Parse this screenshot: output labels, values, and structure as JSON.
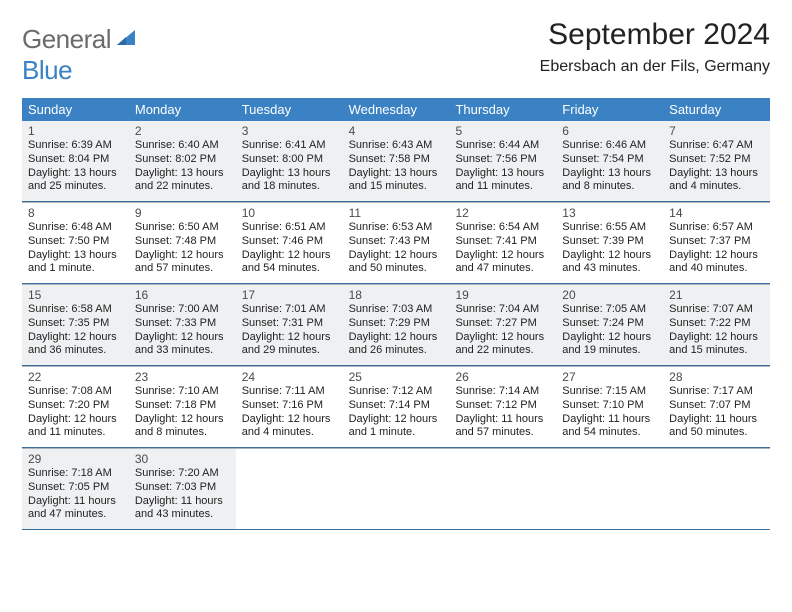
{
  "logo": {
    "text1": "General",
    "text2": "Blue"
  },
  "title": "September 2024",
  "location": "Ebersbach an der Fils, Germany",
  "colors": {
    "header_bg": "#3b82c4",
    "header_text": "#ffffff",
    "alt_row_bg": "#eef0f2",
    "rule_top": "#aab4bd",
    "rule_bottom": "#3b6e9c",
    "logo_gray": "#6b6b6b",
    "logo_blue": "#3b82c4"
  },
  "weekdays": [
    "Sunday",
    "Monday",
    "Tuesday",
    "Wednesday",
    "Thursday",
    "Friday",
    "Saturday"
  ],
  "weeks": [
    {
      "alt": true,
      "days": [
        {
          "n": "1",
          "sr": "Sunrise: 6:39 AM",
          "ss": "Sunset: 8:04 PM",
          "d1": "Daylight: 13 hours",
          "d2": "and 25 minutes."
        },
        {
          "n": "2",
          "sr": "Sunrise: 6:40 AM",
          "ss": "Sunset: 8:02 PM",
          "d1": "Daylight: 13 hours",
          "d2": "and 22 minutes."
        },
        {
          "n": "3",
          "sr": "Sunrise: 6:41 AM",
          "ss": "Sunset: 8:00 PM",
          "d1": "Daylight: 13 hours",
          "d2": "and 18 minutes."
        },
        {
          "n": "4",
          "sr": "Sunrise: 6:43 AM",
          "ss": "Sunset: 7:58 PM",
          "d1": "Daylight: 13 hours",
          "d2": "and 15 minutes."
        },
        {
          "n": "5",
          "sr": "Sunrise: 6:44 AM",
          "ss": "Sunset: 7:56 PM",
          "d1": "Daylight: 13 hours",
          "d2": "and 11 minutes."
        },
        {
          "n": "6",
          "sr": "Sunrise: 6:46 AM",
          "ss": "Sunset: 7:54 PM",
          "d1": "Daylight: 13 hours",
          "d2": "and 8 minutes."
        },
        {
          "n": "7",
          "sr": "Sunrise: 6:47 AM",
          "ss": "Sunset: 7:52 PM",
          "d1": "Daylight: 13 hours",
          "d2": "and 4 minutes."
        }
      ]
    },
    {
      "alt": false,
      "days": [
        {
          "n": "8",
          "sr": "Sunrise: 6:48 AM",
          "ss": "Sunset: 7:50 PM",
          "d1": "Daylight: 13 hours",
          "d2": "and 1 minute."
        },
        {
          "n": "9",
          "sr": "Sunrise: 6:50 AM",
          "ss": "Sunset: 7:48 PM",
          "d1": "Daylight: 12 hours",
          "d2": "and 57 minutes."
        },
        {
          "n": "10",
          "sr": "Sunrise: 6:51 AM",
          "ss": "Sunset: 7:46 PM",
          "d1": "Daylight: 12 hours",
          "d2": "and 54 minutes."
        },
        {
          "n": "11",
          "sr": "Sunrise: 6:53 AM",
          "ss": "Sunset: 7:43 PM",
          "d1": "Daylight: 12 hours",
          "d2": "and 50 minutes."
        },
        {
          "n": "12",
          "sr": "Sunrise: 6:54 AM",
          "ss": "Sunset: 7:41 PM",
          "d1": "Daylight: 12 hours",
          "d2": "and 47 minutes."
        },
        {
          "n": "13",
          "sr": "Sunrise: 6:55 AM",
          "ss": "Sunset: 7:39 PM",
          "d1": "Daylight: 12 hours",
          "d2": "and 43 minutes."
        },
        {
          "n": "14",
          "sr": "Sunrise: 6:57 AM",
          "ss": "Sunset: 7:37 PM",
          "d1": "Daylight: 12 hours",
          "d2": "and 40 minutes."
        }
      ]
    },
    {
      "alt": true,
      "days": [
        {
          "n": "15",
          "sr": "Sunrise: 6:58 AM",
          "ss": "Sunset: 7:35 PM",
          "d1": "Daylight: 12 hours",
          "d2": "and 36 minutes."
        },
        {
          "n": "16",
          "sr": "Sunrise: 7:00 AM",
          "ss": "Sunset: 7:33 PM",
          "d1": "Daylight: 12 hours",
          "d2": "and 33 minutes."
        },
        {
          "n": "17",
          "sr": "Sunrise: 7:01 AM",
          "ss": "Sunset: 7:31 PM",
          "d1": "Daylight: 12 hours",
          "d2": "and 29 minutes."
        },
        {
          "n": "18",
          "sr": "Sunrise: 7:03 AM",
          "ss": "Sunset: 7:29 PM",
          "d1": "Daylight: 12 hours",
          "d2": "and 26 minutes."
        },
        {
          "n": "19",
          "sr": "Sunrise: 7:04 AM",
          "ss": "Sunset: 7:27 PM",
          "d1": "Daylight: 12 hours",
          "d2": "and 22 minutes."
        },
        {
          "n": "20",
          "sr": "Sunrise: 7:05 AM",
          "ss": "Sunset: 7:24 PM",
          "d1": "Daylight: 12 hours",
          "d2": "and 19 minutes."
        },
        {
          "n": "21",
          "sr": "Sunrise: 7:07 AM",
          "ss": "Sunset: 7:22 PM",
          "d1": "Daylight: 12 hours",
          "d2": "and 15 minutes."
        }
      ]
    },
    {
      "alt": false,
      "days": [
        {
          "n": "22",
          "sr": "Sunrise: 7:08 AM",
          "ss": "Sunset: 7:20 PM",
          "d1": "Daylight: 12 hours",
          "d2": "and 11 minutes."
        },
        {
          "n": "23",
          "sr": "Sunrise: 7:10 AM",
          "ss": "Sunset: 7:18 PM",
          "d1": "Daylight: 12 hours",
          "d2": "and 8 minutes."
        },
        {
          "n": "24",
          "sr": "Sunrise: 7:11 AM",
          "ss": "Sunset: 7:16 PM",
          "d1": "Daylight: 12 hours",
          "d2": "and 4 minutes."
        },
        {
          "n": "25",
          "sr": "Sunrise: 7:12 AM",
          "ss": "Sunset: 7:14 PM",
          "d1": "Daylight: 12 hours",
          "d2": "and 1 minute."
        },
        {
          "n": "26",
          "sr": "Sunrise: 7:14 AM",
          "ss": "Sunset: 7:12 PM",
          "d1": "Daylight: 11 hours",
          "d2": "and 57 minutes."
        },
        {
          "n": "27",
          "sr": "Sunrise: 7:15 AM",
          "ss": "Sunset: 7:10 PM",
          "d1": "Daylight: 11 hours",
          "d2": "and 54 minutes."
        },
        {
          "n": "28",
          "sr": "Sunrise: 7:17 AM",
          "ss": "Sunset: 7:07 PM",
          "d1": "Daylight: 11 hours",
          "d2": "and 50 minutes."
        }
      ]
    },
    {
      "alt": true,
      "days": [
        {
          "n": "29",
          "sr": "Sunrise: 7:18 AM",
          "ss": "Sunset: 7:05 PM",
          "d1": "Daylight: 11 hours",
          "d2": "and 47 minutes."
        },
        {
          "n": "30",
          "sr": "Sunrise: 7:20 AM",
          "ss": "Sunset: 7:03 PM",
          "d1": "Daylight: 11 hours",
          "d2": "and 43 minutes."
        },
        null,
        null,
        null,
        null,
        null
      ]
    }
  ]
}
